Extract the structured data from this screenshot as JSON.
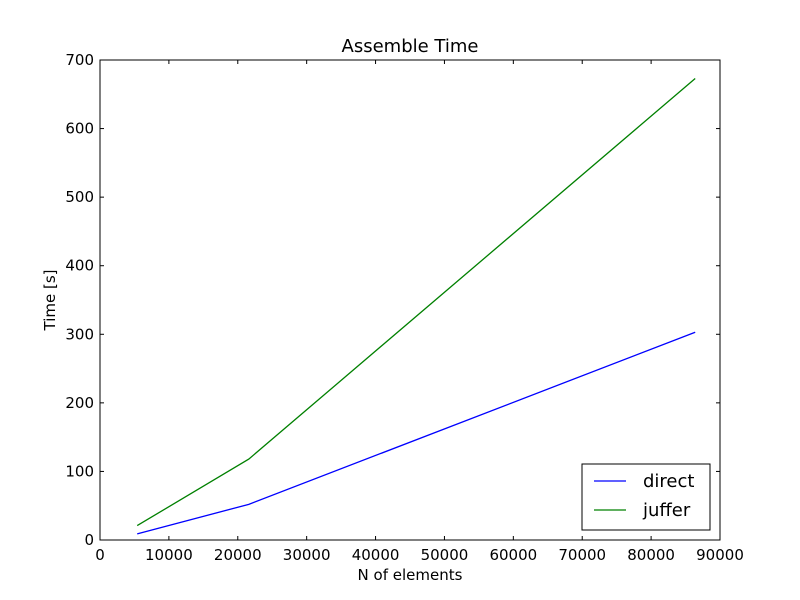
{
  "chart_data": {
    "type": "line",
    "title": "Assemble Time",
    "xlabel": "N of elements",
    "ylabel": "Time [s]",
    "xlim": [
      0,
      90000
    ],
    "ylim": [
      0,
      700
    ],
    "xticks": [
      0,
      10000,
      20000,
      30000,
      40000,
      50000,
      60000,
      70000,
      80000,
      90000
    ],
    "yticks": [
      0,
      100,
      200,
      300,
      400,
      500,
      600,
      700
    ],
    "grid": false,
    "legend_position": "lower-right",
    "series": [
      {
        "name": "direct",
        "color": "#0000ff",
        "x": [
          5400,
          21600,
          86400
        ],
        "y": [
          9,
          52,
          303
        ]
      },
      {
        "name": "juffer",
        "color": "#008000",
        "x": [
          5400,
          21600,
          86400
        ],
        "y": [
          21,
          118,
          673
        ]
      }
    ]
  }
}
